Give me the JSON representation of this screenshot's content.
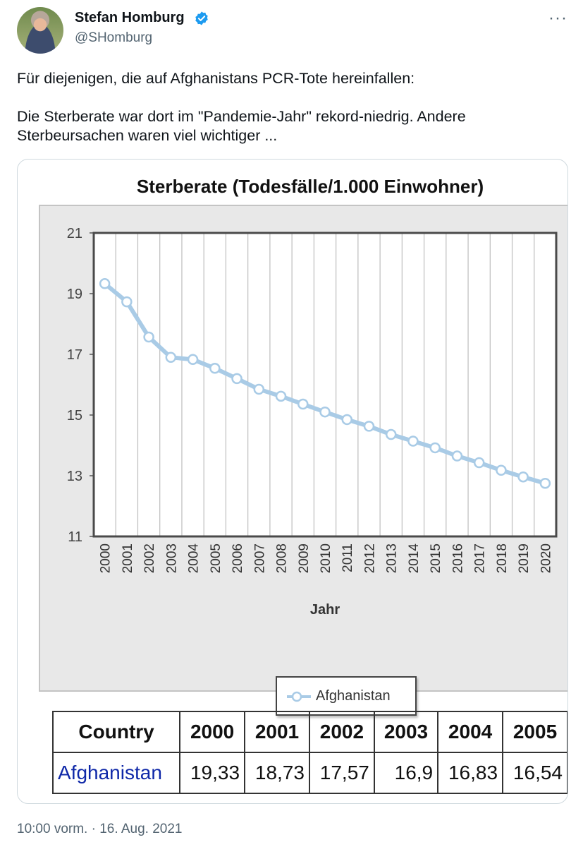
{
  "author": {
    "name": "Stefan Homburg",
    "handle": "@SHomburg",
    "verified_icon": "verified-badge-icon",
    "avatar": "profile-photo"
  },
  "tweet": {
    "line1": "Für diejenigen, die auf Afghanistans PCR-Tote hereinfallen:",
    "line2": "Die Sterberate war dort im \"Pandemie-Jahr\" rekord-niedrig. Andere",
    "line3": "Sterbeursachen waren viel wichtiger ...",
    "timestamp": "10:00 vorm. · 16. Aug. 2021"
  },
  "chart_data": {
    "type": "line",
    "title": "Sterberate (Todesfälle/1.000 Einwohner)",
    "xlabel": "Jahr",
    "ylabel": "",
    "ylim": [
      11,
      21
    ],
    "yticks": [
      11,
      13,
      15,
      17,
      19,
      21
    ],
    "grid": true,
    "legend_placement": "bottom-center",
    "x": [
      "2000",
      "2001",
      "2002",
      "2003",
      "2004",
      "2005",
      "2006",
      "2007",
      "2008",
      "2009",
      "2010",
      "2011",
      "2012",
      "2013",
      "2014",
      "2015",
      "2016",
      "2017",
      "2018",
      "2019",
      "2020"
    ],
    "series": [
      {
        "name": "Afghanistan",
        "color": "#a9cbe6",
        "values": [
          19.33,
          18.73,
          17.57,
          16.9,
          16.83,
          16.54,
          16.2,
          15.85,
          15.62,
          15.36,
          15.1,
          14.85,
          14.63,
          14.36,
          14.14,
          13.92,
          13.65,
          13.43,
          13.18,
          12.96,
          12.75
        ]
      }
    ]
  },
  "table": {
    "header_country": "Country",
    "years": [
      "2000",
      "2001",
      "2002",
      "2003",
      "2004",
      "2005"
    ],
    "row_country": "Afghanistan",
    "row_values": [
      "19,33",
      "18,73",
      "17,57",
      "16,9",
      "16,83",
      "16,54"
    ]
  },
  "colors": {
    "handle_gray": "#536471",
    "verified_blue": "#1d9bf0",
    "link_blue": "#0f28a8"
  }
}
